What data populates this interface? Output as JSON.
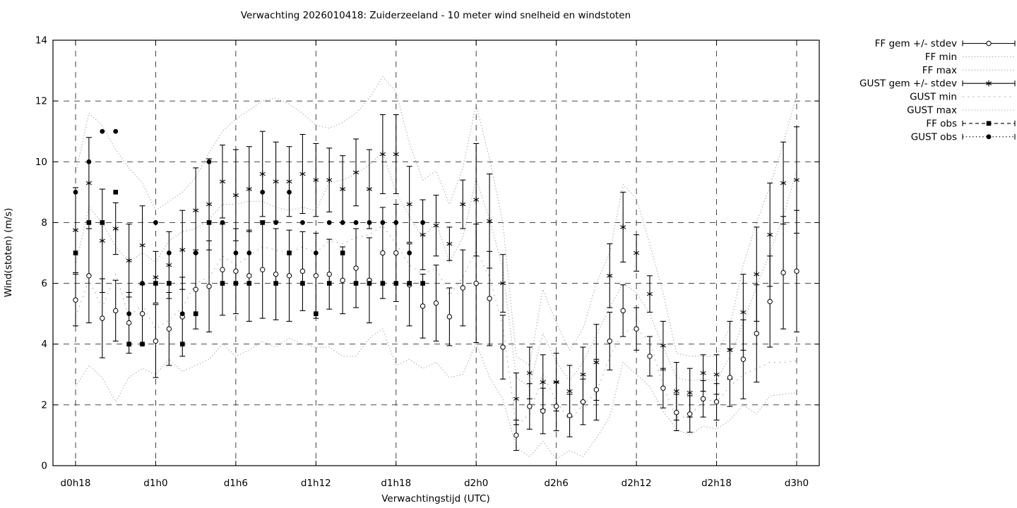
{
  "chart_data": {
    "type": "errorbar",
    "title": "Verwachting 2026010418: Zuiderzeeland - 10 meter wind snelheid en windstoten",
    "xlabel": "Verwachtingstijd (UTC)",
    "ylabel": "Wind(stoten) (m/s)",
    "ylim": [
      0,
      14
    ],
    "y_ticks": [
      0,
      2,
      4,
      6,
      8,
      10,
      12,
      14
    ],
    "x_ticks": [
      {
        "hour": 0,
        "label": "d0h18"
      },
      {
        "hour": 6,
        "label": "d1h0"
      },
      {
        "hour": 12,
        "label": "d1h6"
      },
      {
        "hour": 18,
        "label": "d1h12"
      },
      {
        "hour": 24,
        "label": "d1h18"
      },
      {
        "hour": 30,
        "label": "d2h0"
      },
      {
        "hour": 36,
        "label": "d2h6"
      },
      {
        "hour": 42,
        "label": "d2h12"
      },
      {
        "hour": 48,
        "label": "d2h18"
      },
      {
        "hour": 54,
        "label": "d3h0"
      }
    ],
    "x_hour_step": 1,
    "n_points": 55,
    "grid": true,
    "legend_position": "outside-right",
    "colors": {
      "foreground": "#000000",
      "envelope_gray": "#a6a6a6",
      "grid_gray": "#2e2e2e"
    },
    "series": [
      {
        "name": "FF gem +/- stdev",
        "style": "errorbar",
        "marker": "open-circle",
        "values": [
          5.45,
          6.25,
          4.85,
          5.1,
          4.7,
          5.0,
          4.1,
          4.5,
          4.9,
          5.8,
          5.9,
          6.45,
          6.4,
          6.25,
          6.45,
          6.3,
          6.25,
          6.4,
          6.25,
          6.3,
          6.1,
          6.5,
          6.1,
          7.0,
          7.0,
          5.95,
          5.25,
          5.35,
          4.9,
          5.85,
          6.0,
          5.5,
          3.9,
          1.0,
          1.95,
          1.8,
          1.95,
          1.65,
          2.1,
          2.5,
          4.1,
          5.1,
          4.5,
          3.6,
          2.55,
          1.75,
          1.7,
          2.2,
          2.1,
          2.9,
          3.5,
          4.35,
          5.4,
          6.35,
          6.4
        ],
        "stdev": [
          0.85,
          1.55,
          1.3,
          1.0,
          1.0,
          1.0,
          1.2,
          1.2,
          1.3,
          1.3,
          1.5,
          1.5,
          1.4,
          1.5,
          1.6,
          1.5,
          1.5,
          1.3,
          1.4,
          1.15,
          1.1,
          1.3,
          1.4,
          1.5,
          1.6,
          1.35,
          1.05,
          1.25,
          0.95,
          1.25,
          1.95,
          1.55,
          1.05,
          0.5,
          0.75,
          0.75,
          0.8,
          0.7,
          0.75,
          1.0,
          0.95,
          0.85,
          0.7,
          0.65,
          0.65,
          0.6,
          0.6,
          0.6,
          0.6,
          0.95,
          1.3,
          1.6,
          1.5,
          1.85,
          2.0
        ]
      },
      {
        "name": "FF min",
        "style": "dotted-line",
        "values": [
          2.6,
          3.3,
          2.9,
          2.1,
          2.9,
          3.2,
          3.0,
          3.5,
          3.1,
          3.3,
          3.5,
          4.0,
          3.6,
          3.8,
          4.1,
          3.9,
          4.2,
          4.0,
          3.9,
          3.9,
          3.6,
          3.6,
          4.2,
          4.5,
          3.3,
          3.5,
          3.2,
          3.4,
          2.9,
          3.0,
          4.05,
          2.9,
          2.2,
          0.6,
          0.3,
          0.8,
          0.2,
          0.5,
          0.3,
          0.9,
          1.6,
          3.4,
          3.0,
          2.6,
          1.8,
          1.2,
          1.0,
          1.3,
          1.2,
          1.5,
          2.0,
          1.7,
          2.3,
          2.35,
          2.4
        ]
      },
      {
        "name": "FF max",
        "style": "dotted-line",
        "values": [
          6.6,
          8.5,
          8.0,
          7.2,
          6.7,
          7.0,
          6.7,
          7.4,
          7.7,
          7.8,
          8.1,
          8.6,
          8.6,
          8.7,
          8.7,
          8.5,
          8.4,
          8.5,
          8.4,
          9.3,
          9.4,
          9.6,
          9.9,
          10.3,
          9.0,
          8.2,
          7.5,
          8.0,
          6.7,
          7.5,
          9.45,
          8.1,
          6.5,
          2.9,
          2.6,
          4.35,
          3.4,
          2.8,
          3.4,
          4.3,
          5.2,
          6.0,
          5.7,
          5.0,
          3.9,
          2.9,
          2.8,
          2.85,
          2.8,
          3.6,
          4.7,
          5.9,
          7.0,
          8.2,
          9.7
        ]
      },
      {
        "name": "GUST gem +/- stdev",
        "style": "errorbar",
        "marker": "asterisk",
        "values": [
          7.75,
          9.3,
          7.4,
          7.8,
          6.75,
          7.25,
          6.2,
          6.6,
          7.1,
          8.4,
          8.6,
          9.35,
          8.9,
          9.1,
          9.6,
          9.35,
          9.35,
          9.6,
          9.4,
          9.4,
          9.1,
          9.65,
          9.1,
          10.25,
          10.25,
          8.6,
          7.6,
          7.9,
          7.3,
          8.6,
          8.75,
          8.05,
          6.0,
          2.2,
          3.05,
          2.75,
          2.75,
          2.45,
          3.0,
          3.4,
          6.25,
          7.85,
          7.0,
          5.65,
          3.95,
          2.45,
          2.4,
          3.05,
          3.0,
          3.8,
          5.05,
          6.3,
          7.6,
          9.3,
          9.4
        ],
        "stdev": [
          1.4,
          1.5,
          1.7,
          0.85,
          1.2,
          1.3,
          0.85,
          1.1,
          1.3,
          1.4,
          1.5,
          1.2,
          1.5,
          1.4,
          1.4,
          1.3,
          1.15,
          1.3,
          1.2,
          1.05,
          1.1,
          1.1,
          1.3,
          1.3,
          1.3,
          1.25,
          1.15,
          1.0,
          0.55,
          0.8,
          1.85,
          1.55,
          0.95,
          0.85,
          0.85,
          0.9,
          0.95,
          0.85,
          0.9,
          1.25,
          1.05,
          1.15,
          0.6,
          0.6,
          0.8,
          0.95,
          0.8,
          0.6,
          0.65,
          0.95,
          1.25,
          1.55,
          1.7,
          1.35,
          1.75
        ]
      },
      {
        "name": "GUST min",
        "style": "sparse-dotted-line",
        "values": [
          4.9,
          6.1,
          5.2,
          6.3,
          4.9,
          5.3,
          4.5,
          4.8,
          5.2,
          6.0,
          6.2,
          6.9,
          6.6,
          6.9,
          7.2,
          7.1,
          7.0,
          7.2,
          7.0,
          7.4,
          7.3,
          7.5,
          7.6,
          7.9,
          7.3,
          6.6,
          6.3,
          6.5,
          5.6,
          6.2,
          7.1,
          6.2,
          4.6,
          1.3,
          1.7,
          3.0,
          2.1,
          1.5,
          2.0,
          2.4,
          3.6,
          4.4,
          4.5,
          4.1,
          2.6,
          1.6,
          1.6,
          2.2,
          2.1,
          2.6,
          3.0,
          3.2,
          3.4,
          3.4,
          3.45
        ]
      },
      {
        "name": "GUST max",
        "style": "dotted-line",
        "values": [
          9.6,
          11.6,
          11.2,
          10.4,
          9.8,
          9.3,
          8.4,
          8.7,
          9.0,
          9.5,
          10.3,
          11.0,
          11.4,
          11.7,
          12.0,
          12.1,
          11.9,
          11.6,
          11.2,
          11.1,
          11.3,
          11.6,
          12.1,
          12.8,
          12.3,
          10.6,
          9.4,
          9.7,
          8.6,
          9.8,
          11.9,
          10.1,
          8.0,
          3.6,
          3.3,
          5.8,
          4.7,
          3.8,
          4.5,
          6.0,
          7.0,
          9.25,
          8.8,
          7.3,
          5.7,
          3.7,
          3.6,
          3.6,
          3.6,
          4.6,
          6.6,
          8.0,
          9.2,
          10.6,
          12.2
        ]
      },
      {
        "name": "FF obs",
        "style": "points",
        "marker": "filled-square",
        "legend_line": "dashed",
        "values": [
          7,
          8,
          8,
          9,
          4,
          4,
          6,
          6,
          4,
          5,
          8,
          6,
          6,
          6,
          8,
          6,
          7,
          6,
          5,
          6,
          7,
          6,
          6,
          6,
          6,
          6,
          6
        ]
      },
      {
        "name": "GUST obs",
        "style": "points",
        "marker": "filled-circle",
        "legend_line": "dotted",
        "values": [
          9,
          10,
          11,
          11,
          5,
          6,
          8,
          7,
          5,
          7,
          10,
          8,
          7,
          7,
          9,
          8,
          9,
          8,
          7,
          8,
          8,
          8,
          8,
          8,
          8,
          7,
          8
        ]
      }
    ]
  }
}
